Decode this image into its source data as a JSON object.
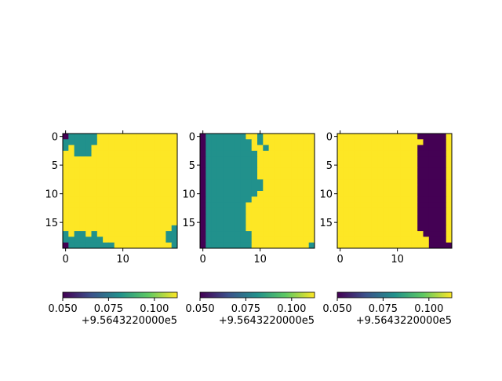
{
  "chart_data": {
    "type": "heatmap",
    "colormap": "viridis",
    "levels": [
      0.05,
      0.08125,
      0.1125
    ],
    "level_colors": [
      "#440154",
      "#21918c",
      "#fde725"
    ],
    "x_ticks": [
      0,
      10
    ],
    "y_ticks": [
      0,
      5,
      10,
      15
    ],
    "x_tick_labels": [
      "0",
      "10"
    ],
    "y_tick_labels": [
      "0",
      "5",
      "10",
      "15"
    ],
    "colorbar": {
      "range": [
        0.05,
        0.1125
      ],
      "ticks": [
        0.05,
        0.075,
        0.1
      ],
      "tick_labels": [
        "0.050",
        "0.075",
        "0.100"
      ],
      "offset_label": "+9.5643220000e5"
    },
    "panels": [
      {
        "name": "panel-1",
        "grid": [
          "01111122222222222222",
          "11111122222222222222",
          "12111222222222222222",
          "22111222222222222222",
          "22222222222222222222",
          "22222222222222222222",
          "22222222222222222222",
          "22222222222222222222",
          "22222222222222222222",
          "22222222222222222222",
          "22222222222222222222",
          "22222222222222222222",
          "22222222222222222222",
          "22222222222222222222",
          "22222222222222222222",
          "22222222222222222222",
          "22222222222222222221",
          "12112122222222222211",
          "11111112222222222211",
          "01111111122222222221"
        ]
      },
      {
        "name": "panel-2",
        "grid": [
          "01111111221222222222",
          "01111111121222222222",
          "01111111122122222222",
          "01111111112222222222",
          "01111111112222222222",
          "01111111112222222222",
          "01111111112222222222",
          "01111111112222222222",
          "01111111111222222222",
          "01111111111222222222",
          "01111111112222222222",
          "01111111122222222222",
          "01111111222222222222",
          "01111111222222222222",
          "01111111222222222222",
          "01111111222222222222",
          "01111111222222222222",
          "01111111122222222222",
          "01111111122222222222",
          "01111111122222222221"
        ]
      },
      {
        "name": "panel-3",
        "grid": [
          "22222222222222000002",
          "22222222222222200002",
          "22222222222222000002",
          "22222222222222000002",
          "22222222222222000002",
          "22222222222222000002",
          "22222222222222000002",
          "22222222222222000002",
          "22222222222222000002",
          "22222222222222000002",
          "22222222222222000002",
          "22222222222222000002",
          "22222222222222000002",
          "22222222222222000002",
          "22222222222222000002",
          "22222222222222000002",
          "22222222222222000002",
          "22222222222222200002",
          "22222222222222220002",
          "22222222222222220000"
        ]
      }
    ]
  }
}
